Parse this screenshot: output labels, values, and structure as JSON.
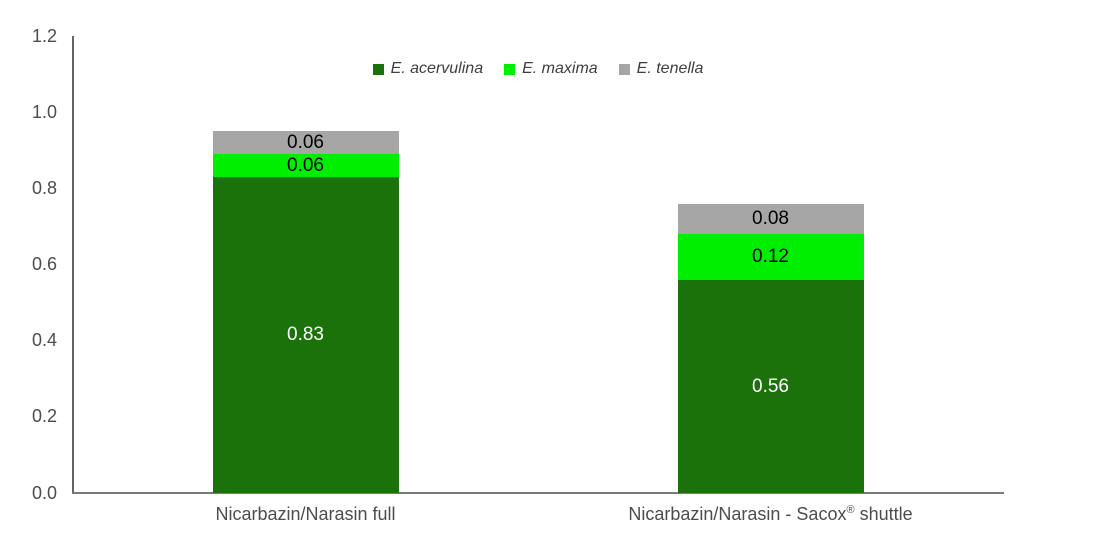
{
  "chart_data": {
    "type": "bar",
    "stacked": true,
    "title": "",
    "xlabel": "",
    "ylabel": "",
    "grid": false,
    "legend_position": "top-center",
    "categories": [
      "Nicarbazin/Narasin full",
      "Nicarbazin/Narasin - Sacox® shuttle"
    ],
    "series": [
      {
        "name": "E. acervulina",
        "color": "#1b720b",
        "label_color": "#ffffff",
        "values": [
          0.83,
          0.56
        ]
      },
      {
        "name": "E. maxima",
        "color": "#00ee00",
        "label_color": "#000000",
        "values": [
          0.06,
          0.12
        ]
      },
      {
        "name": "E. tenella",
        "color": "#a6a6a6",
        "label_color": "#000000",
        "values": [
          0.06,
          0.08
        ]
      }
    ],
    "ylim": [
      0.0,
      1.2
    ],
    "ytick_step": 0.2,
    "ytick_labels": [
      "0.0",
      "0.2",
      "0.4",
      "0.6",
      "0.8",
      "1.0",
      "1.2"
    ],
    "axis_text_color": "#4d4d4d",
    "axis_line_color": "#6e6e6e"
  }
}
